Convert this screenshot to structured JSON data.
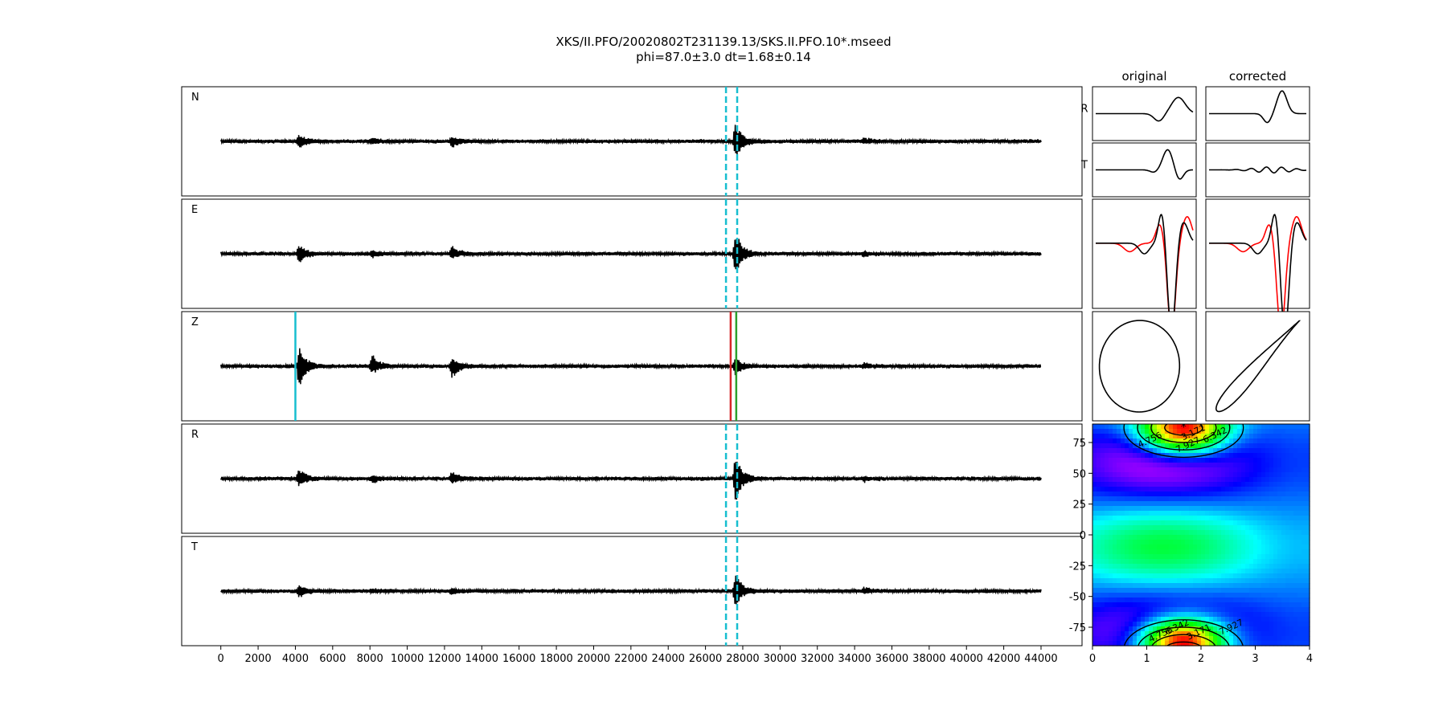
{
  "title_line1": "XKS/II.PFO/20020802T231139.13/SKS.II.PFO.10*.mseed",
  "title_line2": "phi=87.0±3.0 dt=1.68±0.14",
  "chart_data": [
    {
      "type": "line",
      "name": "waveform traces",
      "panels": [
        "N",
        "E",
        "Z",
        "R",
        "T"
      ],
      "x_ticks": [
        0,
        2000,
        4000,
        6000,
        8000,
        10000,
        12000,
        14000,
        16000,
        18000,
        20000,
        22000,
        24000,
        26000,
        28000,
        30000,
        32000,
        34000,
        36000,
        38000,
        40000,
        42000,
        44000
      ],
      "xlim": [
        -2100,
        46200
      ],
      "x_range": [
        0,
        44000
      ],
      "window_markers_dashed": [
        27100,
        27700
      ],
      "z_markers": [
        {
          "x": 4000,
          "color": "#17becf"
        },
        {
          "x": 27350,
          "color": "#d62728"
        },
        {
          "x": 27650,
          "color": "#2ca02c"
        }
      ],
      "events": [
        {
          "x": 4200,
          "amp_by_panel": [
            0.35,
            0.45,
            1.0,
            0.45,
            0.3
          ]
        },
        {
          "x": 8100,
          "amp_by_panel": [
            0.12,
            0.15,
            0.5,
            0.15,
            0.1
          ]
        },
        {
          "x": 12400,
          "amp_by_panel": [
            0.25,
            0.3,
            0.55,
            0.3,
            0.12
          ]
        },
        {
          "x": 27600,
          "amp_by_panel": [
            0.9,
            1.1,
            0.4,
            1.1,
            0.8
          ]
        },
        {
          "x": 34500,
          "amp_by_panel": [
            0.12,
            0.1,
            0.1,
            0.1,
            0.12
          ]
        }
      ]
    },
    {
      "type": "line",
      "name": "particle motion panels",
      "column_titles": [
        "original",
        "corrected"
      ],
      "row_labels": [
        "R",
        "T",
        "",
        ""
      ],
      "series_colors": [
        "#000000",
        "#ff0000"
      ]
    },
    {
      "type": "heatmap",
      "name": "splitting error surface",
      "xlim": [
        0,
        4
      ],
      "ylim": [
        -90,
        90
      ],
      "x_ticks": [
        0,
        1,
        2,
        3,
        4
      ],
      "y_ticks": [
        75,
        50,
        25,
        0,
        -25,
        -50,
        -75
      ],
      "colormap": "gist_rainbow",
      "best_phi": 87.0,
      "best_dt": 1.68,
      "contour_labels": [
        "4.756",
        "3.171",
        "6.342",
        "7.927",
        "4.756",
        "6.342",
        "3.171",
        "7.927"
      ]
    }
  ]
}
